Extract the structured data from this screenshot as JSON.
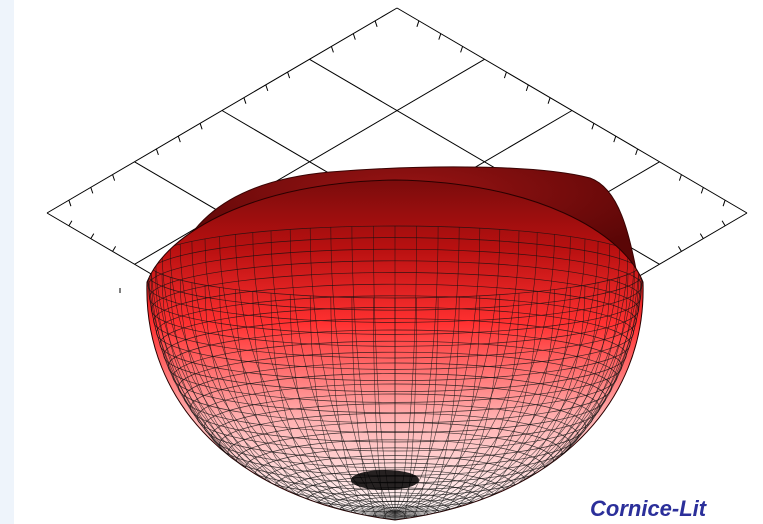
{
  "figure": {
    "caption": "Cornice-Lit",
    "photometric_solid": {
      "shape": "flattened hemispherical luminous intensity distribution",
      "color_top": "#b00000",
      "color_mid": "#ff4a4a",
      "color_bottom": "#ffffff",
      "mesh_color": "#111111"
    },
    "grid": {
      "cells_per_side": 4,
      "ticks_per_cell": 3,
      "line_color": "#000000"
    }
  }
}
